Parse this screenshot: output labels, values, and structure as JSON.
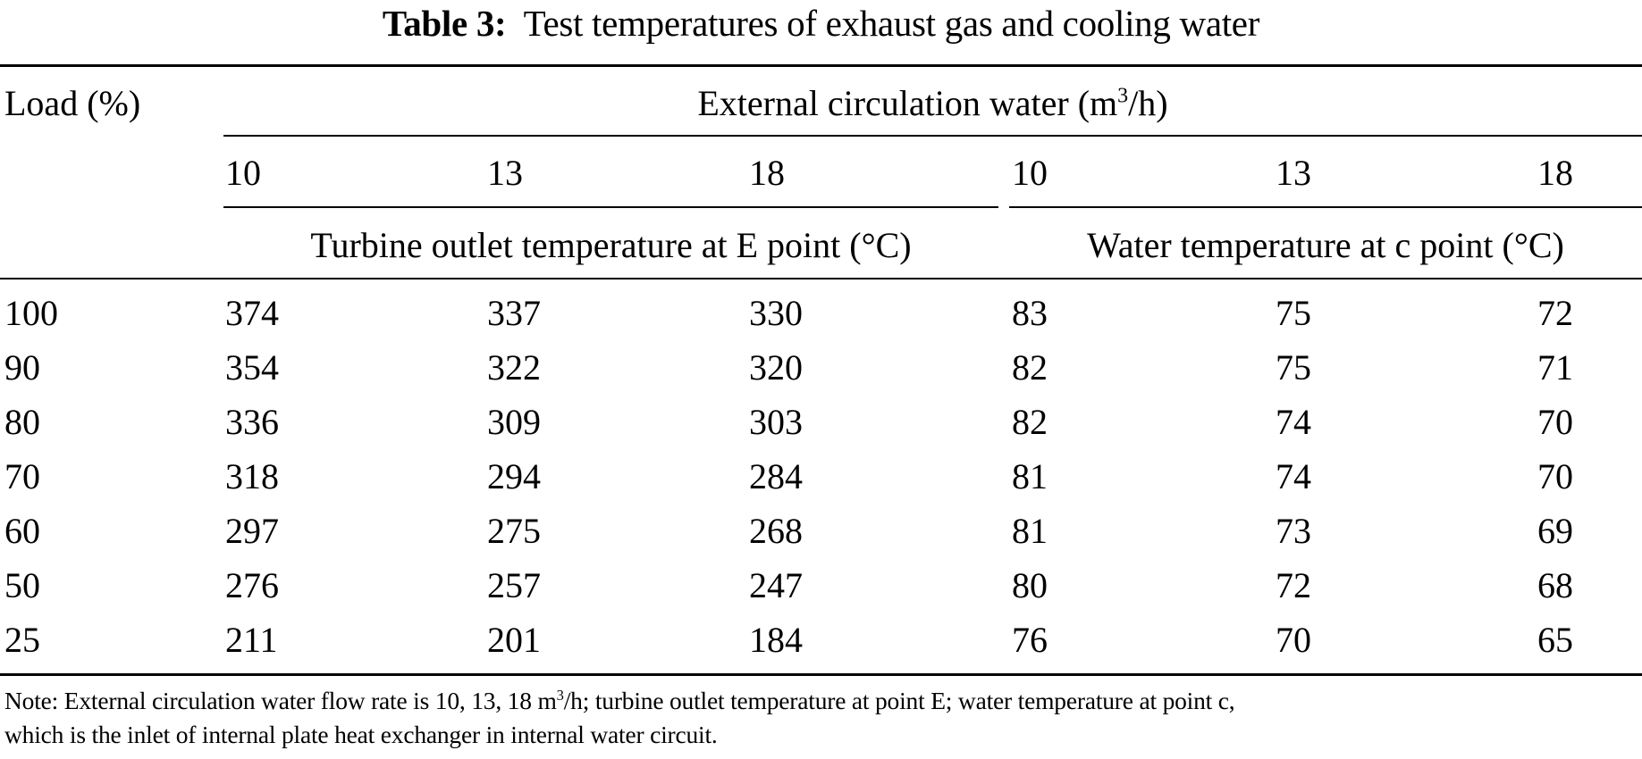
{
  "caption": {
    "label": "Table 3:",
    "text": "Test temperatures of exhaust gas and cooling water"
  },
  "header": {
    "load_label": "Load (%)",
    "group_label_prefix": "External circulation water (m",
    "group_label_sup": "3",
    "group_label_suffix": "/h)",
    "flow_rates": [
      "10",
      "13",
      "18",
      "10",
      "13",
      "18"
    ],
    "subgroup_left": "Turbine outlet temperature at E point (°C)",
    "subgroup_right": "Water temperature at c point (°C)"
  },
  "rows": [
    {
      "load": "100",
      "e10": "374",
      "e13": "337",
      "e18": "330",
      "c10": "83",
      "c13": "75",
      "c18": "72"
    },
    {
      "load": "90",
      "e10": "354",
      "e13": "322",
      "e18": "320",
      "c10": "82",
      "c13": "75",
      "c18": "71"
    },
    {
      "load": "80",
      "e10": "336",
      "e13": "309",
      "e18": "303",
      "c10": "82",
      "c13": "74",
      "c18": "70"
    },
    {
      "load": "70",
      "e10": "318",
      "e13": "294",
      "e18": "284",
      "c10": "81",
      "c13": "74",
      "c18": "70"
    },
    {
      "load": "60",
      "e10": "297",
      "e13": "275",
      "e18": "268",
      "c10": "81",
      "c13": "73",
      "c18": "69"
    },
    {
      "load": "50",
      "e10": "276",
      "e13": "257",
      "e18": "247",
      "c10": "80",
      "c13": "72",
      "c18": "68"
    },
    {
      "load": "25",
      "e10": "211",
      "e13": "201",
      "e18": "184",
      "c10": "76",
      "c13": "70",
      "c18": "65"
    }
  ],
  "note": {
    "part1": "Note: External circulation water flow rate is 10, 13, 18 m",
    "sup": "3",
    "part2": "/h; turbine outlet temperature at point E; water temperature at point c,",
    "line2": "which is the inlet of internal plate heat exchanger in internal water circuit."
  }
}
